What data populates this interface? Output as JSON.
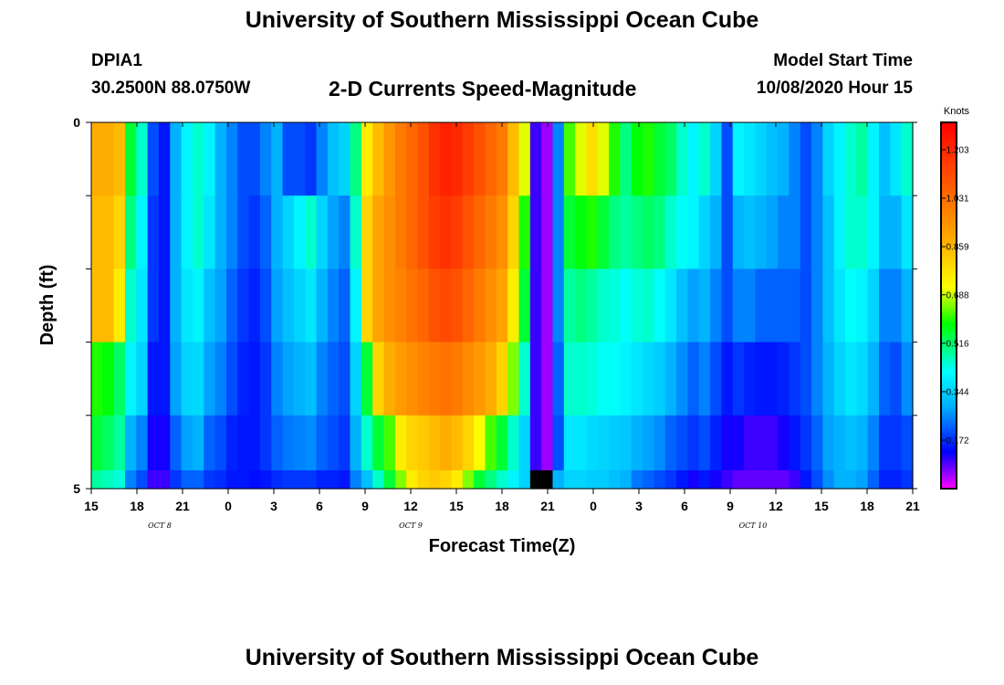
{
  "header": {
    "title": "University of Southern Mississippi Ocean Cube",
    "station": "DPIA1",
    "coords": "30.2500N 88.0750W",
    "variable": "2-D Currents Speed-Magnitude",
    "model_start_label": "Model Start Time",
    "model_start": "10/08/2020 Hour 15"
  },
  "footer": {
    "title": "University of Southern Mississippi Ocean Cube"
  },
  "chart_data": {
    "type": "heatmap",
    "xlabel": "Forecast Time(Z)",
    "ylabel": "Depth (ft)",
    "x_start": "10/08/2020 15Z",
    "x_end": "10/10/2020 21Z",
    "x_ticks": [
      "15",
      "18",
      "21",
      "0",
      "3",
      "6",
      "9",
      "12",
      "15",
      "18",
      "21",
      "0",
      "3",
      "6",
      "9",
      "12",
      "15",
      "18",
      "21"
    ],
    "date_labels": [
      {
        "text": "OCT 8",
        "at_tick": 1.5
      },
      {
        "text": "OCT 9",
        "at_tick": 7
      },
      {
        "text": "OCT 10",
        "at_tick": 14.5
      }
    ],
    "y_ticks": [
      "0",
      "5"
    ],
    "ylim": [
      0,
      5
    ],
    "colorbar": {
      "label": "Knots",
      "min": 0,
      "max": 1.3,
      "ticks": [
        "1.203",
        "1.031",
        "0.859",
        "0.688",
        "0.516",
        "0.344",
        "0.172"
      ],
      "tick_values": [
        1.203,
        1.031,
        0.859,
        0.688,
        0.516,
        0.344,
        0.172
      ]
    },
    "missing_value": -1,
    "depth_layers": [
      {
        "depth": 0.5,
        "values": [
          0.88,
          0.88,
          0.85,
          0.55,
          0.45,
          0.2,
          0.15,
          0.3,
          0.4,
          0.45,
          0.4,
          0.3,
          0.25,
          0.2,
          0.2,
          0.25,
          0.3,
          0.2,
          0.2,
          0.18,
          0.25,
          0.32,
          0.35,
          0.5,
          0.75,
          0.85,
          0.93,
          1.0,
          1.05,
          1.1,
          1.18,
          1.22,
          1.2,
          1.15,
          1.1,
          1.05,
          1.0,
          0.85,
          0.7,
          0.1,
          0.05,
          0.25,
          0.62,
          0.7,
          0.78,
          0.7,
          0.6,
          0.5,
          0.58,
          0.6,
          0.55,
          0.52,
          0.45,
          0.4,
          0.45,
          0.35,
          0.2,
          0.4,
          0.38,
          0.35,
          0.32,
          0.3,
          0.25,
          0.2,
          0.25,
          0.35,
          0.4,
          0.45,
          0.48,
          0.4,
          0.32,
          0.38,
          0.45
        ]
      },
      {
        "depth": 1.5,
        "values": [
          0.85,
          0.85,
          0.8,
          0.5,
          0.4,
          0.18,
          0.15,
          0.3,
          0.4,
          0.45,
          0.38,
          0.3,
          0.25,
          0.2,
          0.18,
          0.22,
          0.3,
          0.35,
          0.4,
          0.45,
          0.35,
          0.28,
          0.25,
          0.45,
          0.8,
          0.9,
          0.95,
          1.0,
          1.05,
          1.1,
          1.15,
          1.18,
          1.15,
          1.1,
          1.05,
          1.0,
          0.95,
          0.8,
          0.6,
          0.1,
          0.05,
          0.25,
          0.55,
          0.58,
          0.6,
          0.55,
          0.5,
          0.48,
          0.5,
          0.52,
          0.5,
          0.45,
          0.42,
          0.4,
          0.35,
          0.3,
          0.2,
          0.3,
          0.32,
          0.3,
          0.28,
          0.25,
          0.25,
          0.2,
          0.25,
          0.32,
          0.4,
          0.45,
          0.45,
          0.4,
          0.3,
          0.3,
          0.38
        ]
      },
      {
        "depth": 2.5,
        "values": [
          0.85,
          0.85,
          0.75,
          0.45,
          0.38,
          0.18,
          0.15,
          0.3,
          0.38,
          0.4,
          0.32,
          0.28,
          0.22,
          0.18,
          0.16,
          0.2,
          0.28,
          0.32,
          0.35,
          0.38,
          0.3,
          0.25,
          0.22,
          0.4,
          0.8,
          0.9,
          0.95,
          0.98,
          1.02,
          1.05,
          1.1,
          1.12,
          1.1,
          1.05,
          1.0,
          0.95,
          0.9,
          0.75,
          0.55,
          0.1,
          0.05,
          0.25,
          0.48,
          0.5,
          0.48,
          0.45,
          0.44,
          0.42,
          0.44,
          0.45,
          0.42,
          0.38,
          0.32,
          0.28,
          0.3,
          0.25,
          0.2,
          0.25,
          0.25,
          0.22,
          0.22,
          0.22,
          0.22,
          0.2,
          0.25,
          0.32,
          0.38,
          0.42,
          0.4,
          0.35,
          0.25,
          0.25,
          0.3
        ]
      },
      {
        "depth": 3.5,
        "values": [
          0.6,
          0.58,
          0.52,
          0.4,
          0.35,
          0.15,
          0.15,
          0.28,
          0.35,
          0.36,
          0.28,
          0.25,
          0.2,
          0.16,
          0.15,
          0.18,
          0.25,
          0.28,
          0.3,
          0.32,
          0.25,
          0.22,
          0.2,
          0.35,
          0.55,
          0.8,
          0.88,
          0.92,
          0.95,
          0.98,
          1.0,
          1.02,
          1.0,
          0.96,
          0.92,
          0.88,
          0.8,
          0.65,
          0.45,
          0.1,
          0.05,
          0.22,
          0.45,
          0.45,
          0.44,
          0.42,
          0.42,
          0.4,
          0.38,
          0.36,
          0.34,
          0.3,
          0.26,
          0.22,
          0.25,
          0.2,
          0.15,
          0.18,
          0.16,
          0.15,
          0.15,
          0.16,
          0.18,
          0.2,
          0.25,
          0.3,
          0.35,
          0.38,
          0.36,
          0.3,
          0.22,
          0.2,
          0.26
        ]
      },
      {
        "depth": 4.5,
        "values": [
          0.55,
          0.52,
          0.48,
          0.3,
          0.25,
          0.12,
          0.12,
          0.22,
          0.28,
          0.3,
          0.22,
          0.2,
          0.16,
          0.15,
          0.15,
          0.18,
          0.22,
          0.24,
          0.25,
          0.26,
          0.22,
          0.2,
          0.18,
          0.3,
          0.45,
          0.55,
          0.62,
          0.75,
          0.8,
          0.82,
          0.85,
          0.88,
          0.85,
          0.8,
          0.72,
          0.62,
          0.55,
          0.45,
          0.35,
          0.1,
          0.05,
          0.2,
          0.38,
          0.38,
          0.36,
          0.35,
          0.34,
          0.33,
          0.3,
          0.28,
          0.26,
          0.22,
          0.2,
          0.18,
          0.2,
          0.16,
          0.12,
          0.12,
          0.1,
          0.1,
          0.1,
          0.12,
          0.15,
          0.18,
          0.22,
          0.28,
          0.3,
          0.32,
          0.3,
          0.25,
          0.18,
          0.18,
          0.2
        ]
      },
      {
        "depth": 5.0,
        "values": [
          0.48,
          0.46,
          0.44,
          0.25,
          0.2,
          0.1,
          0.1,
          0.18,
          0.22,
          0.22,
          0.18,
          0.17,
          0.15,
          0.15,
          0.14,
          0.15,
          0.17,
          0.18,
          0.18,
          0.18,
          0.16,
          0.16,
          0.15,
          0.25,
          0.32,
          0.45,
          0.55,
          0.65,
          0.75,
          0.8,
          0.82,
          0.8,
          0.75,
          0.65,
          0.55,
          0.5,
          0.45,
          0.4,
          0.35,
          -1,
          -1,
          0.3,
          0.35,
          0.35,
          0.34,
          0.34,
          0.32,
          0.3,
          0.24,
          0.22,
          0.2,
          0.18,
          0.15,
          0.12,
          0.15,
          0.12,
          0.1,
          0.08,
          0.08,
          0.08,
          0.08,
          0.08,
          0.1,
          0.15,
          0.2,
          0.26,
          0.3,
          0.3,
          0.28,
          0.22,
          0.16,
          0.16,
          0.18
        ]
      }
    ]
  }
}
